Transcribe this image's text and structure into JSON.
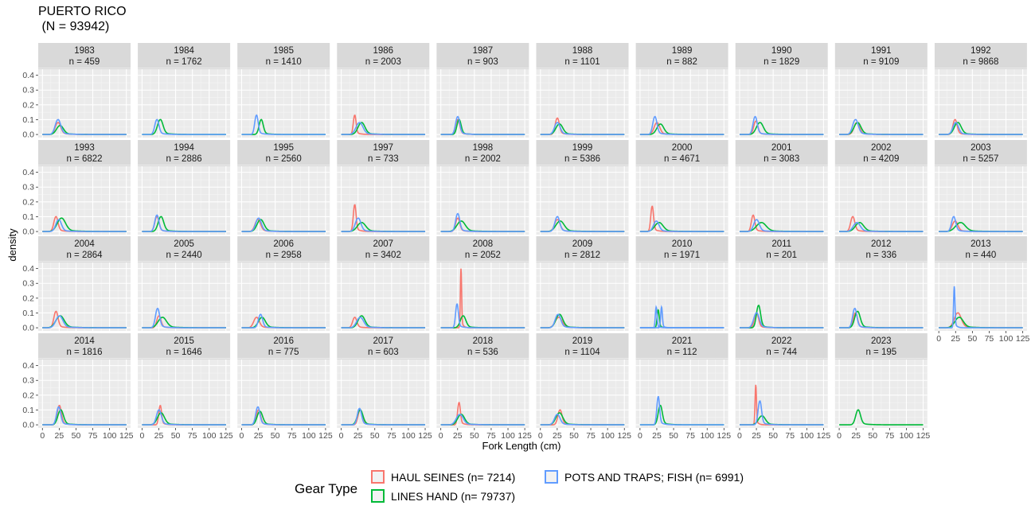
{
  "chart_data": {
    "type": "line",
    "title_line1": "PUERTO RICO",
    "title_line2": " (N = 93942)",
    "xlabel": "Fork Length (cm)",
    "ylabel": "density",
    "xlim": [
      0,
      125
    ],
    "ylim": [
      0,
      0.42
    ],
    "x_ticks": [
      0,
      25,
      50,
      75,
      100,
      125
    ],
    "y_ticks": [
      0.0,
      0.1,
      0.2,
      0.3,
      0.4
    ],
    "x_tick_labels": [
      "0",
      "25",
      "50",
      "75",
      "100",
      "125"
    ],
    "y_tick_labels": [
      "0.0",
      "0.1",
      "0.2",
      "0.3",
      "0.4"
    ],
    "grid": true,
    "legend_position": "bottom",
    "legend_title": "Gear Type",
    "series": [
      {
        "name": "HAUL SEINES (n= 7214)",
        "color": "#F8766D"
      },
      {
        "name": "LINES HAND (n= 79737)",
        "color": "#00BA38"
      },
      {
        "name": "POTS AND TRAPS; FISH (n= 6991)",
        "color": "#619CFF"
      }
    ],
    "panels": [
      {
        "year": "1983",
        "n": "n = 459",
        "curves": [
          {
            "s": 0,
            "peak": 23,
            "h": 0.08,
            "w": 4
          },
          {
            "s": 1,
            "peak": 26,
            "h": 0.06,
            "w": 5
          },
          {
            "s": 2,
            "peak": 23,
            "h": 0.1,
            "w": 4
          }
        ]
      },
      {
        "year": "1984",
        "n": "n = 1762",
        "curves": [
          {
            "s": 1,
            "peak": 27,
            "h": 0.1,
            "w": 4
          },
          {
            "s": 2,
            "peak": 22,
            "h": 0.1,
            "w": 3
          }
        ]
      },
      {
        "year": "1985",
        "n": "n = 1410",
        "curves": [
          {
            "s": 1,
            "peak": 29,
            "h": 0.1,
            "w": 3
          },
          {
            "s": 2,
            "peak": 22,
            "h": 0.13,
            "w": 2.5
          }
        ]
      },
      {
        "year": "1986",
        "n": "n = 2003",
        "curves": [
          {
            "s": 0,
            "peak": 20,
            "h": 0.13,
            "w": 2
          },
          {
            "s": 1,
            "peak": 30,
            "h": 0.08,
            "w": 5
          },
          {
            "s": 2,
            "peak": 27,
            "h": 0.08,
            "w": 5
          }
        ]
      },
      {
        "year": "1987",
        "n": "n = 903",
        "curves": [
          {
            "s": 0,
            "peak": 25,
            "h": 0.1,
            "w": 3
          },
          {
            "s": 1,
            "peak": 27,
            "h": 0.1,
            "w": 3
          },
          {
            "s": 2,
            "peak": 25,
            "h": 0.12,
            "w": 3
          }
        ]
      },
      {
        "year": "1988",
        "n": "n = 1101",
        "curves": [
          {
            "s": 0,
            "peak": 25,
            "h": 0.11,
            "w": 3
          },
          {
            "s": 1,
            "peak": 28,
            "h": 0.07,
            "w": 5
          },
          {
            "s": 2,
            "peak": 25,
            "h": 0.08,
            "w": 4
          }
        ]
      },
      {
        "year": "1989",
        "n": "n = 882",
        "curves": [
          {
            "s": 0,
            "peak": 25,
            "h": 0.08,
            "w": 4
          },
          {
            "s": 1,
            "peak": 30,
            "h": 0.07,
            "w": 5
          },
          {
            "s": 2,
            "peak": 22,
            "h": 0.12,
            "w": 3
          }
        ]
      },
      {
        "year": "1990",
        "n": "n = 1829",
        "curves": [
          {
            "s": 0,
            "peak": 24,
            "h": 0.09,
            "w": 3
          },
          {
            "s": 1,
            "peak": 30,
            "h": 0.08,
            "w": 5
          },
          {
            "s": 2,
            "peak": 23,
            "h": 0.12,
            "w": 3
          }
        ]
      },
      {
        "year": "1991",
        "n": "n = 9109",
        "curves": [
          {
            "s": 0,
            "peak": 26,
            "h": 0.08,
            "w": 4
          },
          {
            "s": 1,
            "peak": 27,
            "h": 0.08,
            "w": 5
          },
          {
            "s": 2,
            "peak": 24,
            "h": 0.1,
            "w": 4
          }
        ]
      },
      {
        "year": "1992",
        "n": "n = 9868",
        "curves": [
          {
            "s": 0,
            "peak": 24,
            "h": 0.1,
            "w": 3
          },
          {
            "s": 1,
            "peak": 28,
            "h": 0.08,
            "w": 5
          },
          {
            "s": 2,
            "peak": 25,
            "h": 0.08,
            "w": 4
          }
        ]
      },
      {
        "year": "1993",
        "n": "n = 6822",
        "curves": [
          {
            "s": 0,
            "peak": 20,
            "h": 0.1,
            "w": 3
          },
          {
            "s": 1,
            "peak": 28,
            "h": 0.09,
            "w": 6
          },
          {
            "s": 2,
            "peak": 24,
            "h": 0.08,
            "w": 4
          }
        ]
      },
      {
        "year": "1994",
        "n": "n = 2886",
        "curves": [
          {
            "s": 0,
            "peak": 22,
            "h": 0.1,
            "w": 3
          },
          {
            "s": 1,
            "peak": 28,
            "h": 0.1,
            "w": 4
          },
          {
            "s": 2,
            "peak": 22,
            "h": 0.11,
            "w": 3
          }
        ]
      },
      {
        "year": "1995",
        "n": "n = 2560",
        "curves": [
          {
            "s": 0,
            "peak": 24,
            "h": 0.08,
            "w": 4
          },
          {
            "s": 1,
            "peak": 28,
            "h": 0.08,
            "w": 5
          },
          {
            "s": 2,
            "peak": 25,
            "h": 0.09,
            "w": 4
          }
        ]
      },
      {
        "year": "1997",
        "n": "n = 733",
        "curves": [
          {
            "s": 0,
            "peak": 20,
            "h": 0.18,
            "w": 2
          },
          {
            "s": 1,
            "peak": 30,
            "h": 0.06,
            "w": 6
          },
          {
            "s": 2,
            "peak": 25,
            "h": 0.09,
            "w": 4
          }
        ]
      },
      {
        "year": "1998",
        "n": "n = 2002",
        "curves": [
          {
            "s": 0,
            "peak": 25,
            "h": 0.09,
            "w": 3
          },
          {
            "s": 1,
            "peak": 30,
            "h": 0.07,
            "w": 6
          },
          {
            "s": 2,
            "peak": 25,
            "h": 0.12,
            "w": 3
          }
        ]
      },
      {
        "year": "1999",
        "n": "n = 5386",
        "curves": [
          {
            "s": 0,
            "peak": 25,
            "h": 0.08,
            "w": 4
          },
          {
            "s": 1,
            "peak": 29,
            "h": 0.07,
            "w": 6
          },
          {
            "s": 2,
            "peak": 25,
            "h": 0.1,
            "w": 3.5
          }
        ]
      },
      {
        "year": "2000",
        "n": "n = 4671",
        "curves": [
          {
            "s": 0,
            "peak": 18,
            "h": 0.17,
            "w": 2
          },
          {
            "s": 1,
            "peak": 28,
            "h": 0.06,
            "w": 6
          },
          {
            "s": 2,
            "peak": 24,
            "h": 0.07,
            "w": 4
          }
        ]
      },
      {
        "year": "2001",
        "n": "n = 3083",
        "curves": [
          {
            "s": 0,
            "peak": 20,
            "h": 0.11,
            "w": 2.5
          },
          {
            "s": 1,
            "peak": 32,
            "h": 0.06,
            "w": 7
          },
          {
            "s": 2,
            "peak": 25,
            "h": 0.08,
            "w": 4
          }
        ]
      },
      {
        "year": "2002",
        "n": "n = 4209",
        "curves": [
          {
            "s": 0,
            "peak": 20,
            "h": 0.1,
            "w": 3
          },
          {
            "s": 1,
            "peak": 30,
            "h": 0.06,
            "w": 6
          },
          {
            "s": 2,
            "peak": 26,
            "h": 0.06,
            "w": 5
          }
        ]
      },
      {
        "year": "2003",
        "n": "n = 5257",
        "curves": [
          {
            "s": 0,
            "peak": 24,
            "h": 0.07,
            "w": 4
          },
          {
            "s": 1,
            "peak": 32,
            "h": 0.06,
            "w": 7
          },
          {
            "s": 2,
            "peak": 22,
            "h": 0.1,
            "w": 3
          }
        ]
      },
      {
        "year": "2004",
        "n": "n = 2864",
        "curves": [
          {
            "s": 0,
            "peak": 20,
            "h": 0.11,
            "w": 3
          },
          {
            "s": 1,
            "peak": 26,
            "h": 0.08,
            "w": 6
          },
          {
            "s": 2,
            "peak": 25,
            "h": 0.08,
            "w": 5
          }
        ]
      },
      {
        "year": "2005",
        "n": "n = 2440",
        "curves": [
          {
            "s": 0,
            "peak": 25,
            "h": 0.08,
            "w": 3
          },
          {
            "s": 1,
            "peak": 30,
            "h": 0.07,
            "w": 6
          },
          {
            "s": 2,
            "peak": 23,
            "h": 0.13,
            "w": 3
          }
        ]
      },
      {
        "year": "2006",
        "n": "n = 2958",
        "curves": [
          {
            "s": 0,
            "peak": 22,
            "h": 0.07,
            "w": 4
          },
          {
            "s": 1,
            "peak": 30,
            "h": 0.07,
            "w": 5
          },
          {
            "s": 2,
            "peak": 28,
            "h": 0.09,
            "w": 3
          }
        ]
      },
      {
        "year": "2007",
        "n": "n = 3402",
        "curves": [
          {
            "s": 0,
            "peak": 20,
            "h": 0.07,
            "w": 3
          },
          {
            "s": 1,
            "peak": 30,
            "h": 0.08,
            "w": 5
          },
          {
            "s": 2,
            "peak": 28,
            "h": 0.07,
            "w": 5
          }
        ]
      },
      {
        "year": "2008",
        "n": "n = 2052",
        "curves": [
          {
            "s": 0,
            "peak": 30,
            "h": 0.4,
            "w": 0.9
          },
          {
            "s": 1,
            "peak": 33,
            "h": 0.08,
            "w": 4
          },
          {
            "s": 2,
            "peak": 24,
            "h": 0.16,
            "w": 2
          }
        ]
      },
      {
        "year": "2009",
        "n": "n = 2812",
        "curves": [
          {
            "s": 0,
            "peak": 27,
            "h": 0.07,
            "w": 5
          },
          {
            "s": 1,
            "peak": 28,
            "h": 0.09,
            "w": 5
          },
          {
            "s": 2,
            "peak": 26,
            "h": 0.09,
            "w": 4
          }
        ]
      },
      {
        "year": "2010",
        "n": "n = 1971",
        "curves": [
          {
            "s": 1,
            "peak": 27,
            "h": 0.12,
            "w": 1.5
          },
          {
            "s": 2,
            "peak": 24,
            "h": 0.14,
            "w": 1.2
          },
          {
            "s": 2,
            "peak": 32,
            "h": 0.14,
            "w": 1.2
          }
        ]
      },
      {
        "year": "2011",
        "n": "n = 201",
        "curves": [
          {
            "s": 0,
            "peak": 25,
            "h": 0.1,
            "w": 3
          },
          {
            "s": 1,
            "peak": 28,
            "h": 0.15,
            "w": 3
          },
          {
            "s": 2,
            "peak": 25,
            "h": 0.1,
            "w": 4
          }
        ]
      },
      {
        "year": "2012",
        "n": "n = 336",
        "curves": [
          {
            "s": 0,
            "peak": 24,
            "h": 0.1,
            "w": 3
          },
          {
            "s": 1,
            "peak": 27,
            "h": 0.11,
            "w": 4
          },
          {
            "s": 2,
            "peak": 23,
            "h": 0.13,
            "w": 3
          }
        ]
      },
      {
        "year": "2013",
        "n": "n = 440",
        "curves": [
          {
            "s": 0,
            "peak": 28,
            "h": 0.1,
            "w": 5
          },
          {
            "s": 1,
            "peak": 30,
            "h": 0.07,
            "w": 6
          },
          {
            "s": 2,
            "peak": 23,
            "h": 0.28,
            "w": 1
          }
        ]
      },
      {
        "year": "2014",
        "n": "n = 1816",
        "curves": [
          {
            "s": 0,
            "peak": 25,
            "h": 0.13,
            "w": 3
          },
          {
            "s": 1,
            "peak": 27,
            "h": 0.1,
            "w": 4
          },
          {
            "s": 2,
            "peak": 24,
            "h": 0.12,
            "w": 3
          }
        ]
      },
      {
        "year": "2015",
        "n": "n = 1646",
        "curves": [
          {
            "s": 0,
            "peak": 27,
            "h": 0.13,
            "w": 2
          },
          {
            "s": 1,
            "peak": 28,
            "h": 0.08,
            "w": 5
          },
          {
            "s": 2,
            "peak": 25,
            "h": 0.1,
            "w": 3.5
          }
        ]
      },
      {
        "year": "2016",
        "n": "n = 775",
        "curves": [
          {
            "s": 0,
            "peak": 25,
            "h": 0.1,
            "w": 3
          },
          {
            "s": 1,
            "peak": 27,
            "h": 0.09,
            "w": 4
          },
          {
            "s": 2,
            "peak": 24,
            "h": 0.12,
            "w": 3
          }
        ]
      },
      {
        "year": "2017",
        "n": "n = 603",
        "curves": [
          {
            "s": 0,
            "peak": 28,
            "h": 0.1,
            "w": 3
          },
          {
            "s": 1,
            "peak": 28,
            "h": 0.1,
            "w": 4
          },
          {
            "s": 2,
            "peak": 27,
            "h": 0.11,
            "w": 3
          }
        ]
      },
      {
        "year": "2018",
        "n": "n = 536",
        "curves": [
          {
            "s": 0,
            "peak": 27,
            "h": 0.15,
            "w": 2
          },
          {
            "s": 1,
            "peak": 30,
            "h": 0.07,
            "w": 5
          },
          {
            "s": 2,
            "peak": 28,
            "h": 0.07,
            "w": 5
          }
        ]
      },
      {
        "year": "2019",
        "n": "n = 1104",
        "curves": [
          {
            "s": 0,
            "peak": 29,
            "h": 0.1,
            "w": 3
          },
          {
            "s": 1,
            "peak": 28,
            "h": 0.08,
            "w": 5
          },
          {
            "s": 2,
            "peak": 25,
            "h": 0.07,
            "w": 4
          }
        ]
      },
      {
        "year": "2021",
        "n": "n = 112",
        "curves": [
          {
            "s": 1,
            "peak": 30,
            "h": 0.13,
            "w": 3
          },
          {
            "s": 2,
            "peak": 27,
            "h": 0.19,
            "w": 2
          }
        ]
      },
      {
        "year": "2022",
        "n": "n = 744",
        "curves": [
          {
            "s": 0,
            "peak": 24,
            "h": 0.27,
            "w": 1
          },
          {
            "s": 1,
            "peak": 33,
            "h": 0.06,
            "w": 5
          },
          {
            "s": 2,
            "peak": 30,
            "h": 0.16,
            "w": 2.5
          }
        ]
      },
      {
        "year": "2023",
        "n": "n = 195",
        "curves": [
          {
            "s": 1,
            "peak": 28,
            "h": 0.1,
            "w": 3.5
          }
        ]
      }
    ]
  }
}
